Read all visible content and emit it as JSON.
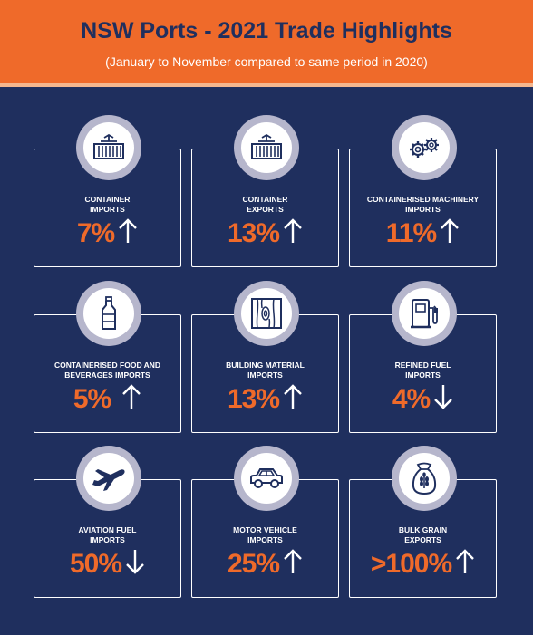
{
  "header": {
    "title": "NSW Ports - 2021 Trade Highlights",
    "subtitle": "(January to November compared to same period in 2020)"
  },
  "colors": {
    "header_bg": "#ef6a2a",
    "body_bg": "#1f2f5e",
    "value": "#ef6a2a",
    "badge_ring": "#b6b6cc"
  },
  "cards": [
    {
      "label_line1": "CONTAINER",
      "label_line2": "IMPORTS",
      "value": "7%",
      "direction": "up",
      "icon": "shipping-container-icon"
    },
    {
      "label_line1": "CONTAINER",
      "label_line2": "EXPORTS",
      "value": "13%",
      "direction": "up",
      "icon": "shipping-container-icon"
    },
    {
      "label_line1": "CONTAINERISED MACHINERY",
      "label_line2": "IMPORTS",
      "value": "11%",
      "direction": "up",
      "icon": "gears-icon"
    },
    {
      "label_line1": "CONTAINERISED FOOD AND",
      "label_line2": "BEVERAGES IMPORTS",
      "value": "5%",
      "direction": "up",
      "icon": "bottle-icon"
    },
    {
      "label_line1": "BUILDING MATERIAL",
      "label_line2": "IMPORTS",
      "value": "13%",
      "direction": "up",
      "icon": "timber-icon"
    },
    {
      "label_line1": "REFINED FUEL",
      "label_line2": "IMPORTS",
      "value": "4%",
      "direction": "down",
      "icon": "fuel-pump-icon"
    },
    {
      "label_line1": "AVIATION FUEL",
      "label_line2": "IMPORTS",
      "value": "50%",
      "direction": "down",
      "icon": "airplane-icon"
    },
    {
      "label_line1": "MOTOR VEHICLE",
      "label_line2": "IMPORTS",
      "value": "25%",
      "direction": "up",
      "icon": "car-icon"
    },
    {
      "label_line1": "BULK GRAIN",
      "label_line2": "EXPORTS",
      "value": ">100%",
      "direction": "up",
      "icon": "grain-sack-icon"
    }
  ]
}
